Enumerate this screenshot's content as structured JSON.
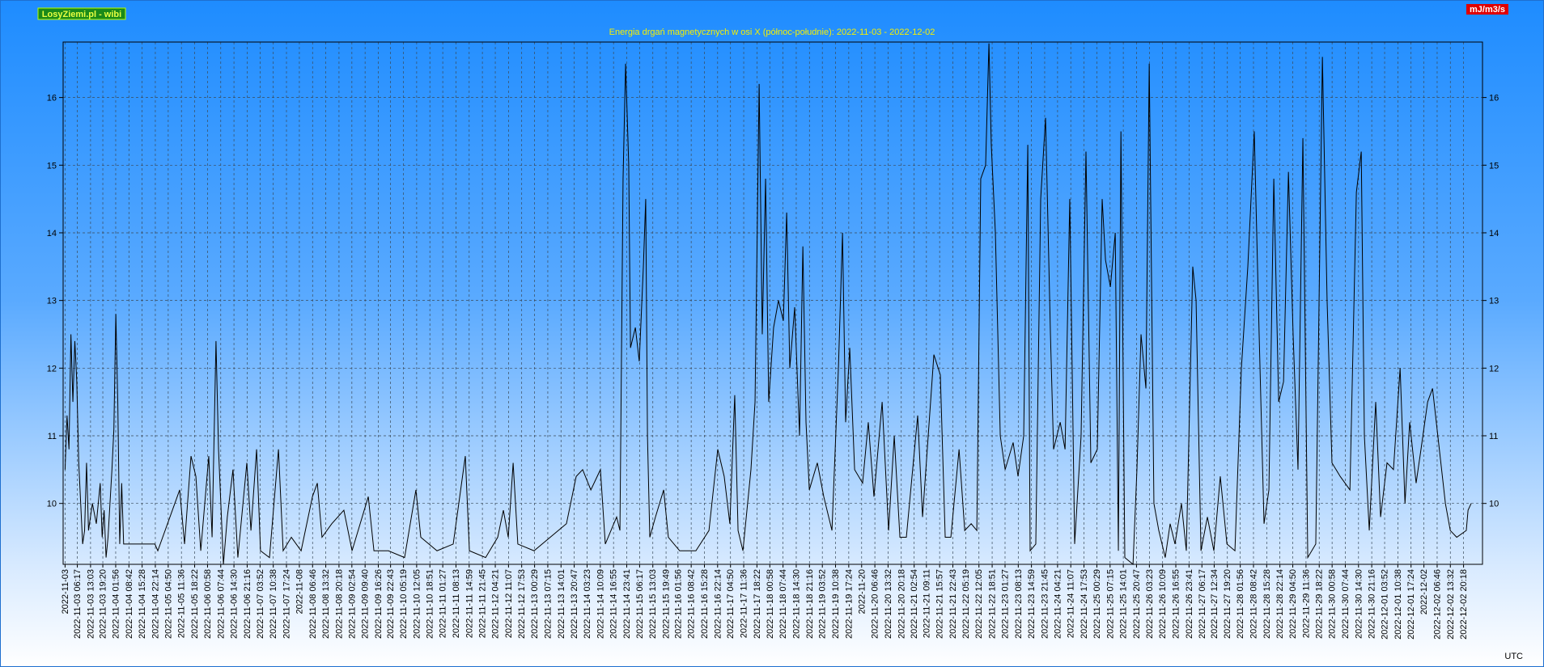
{
  "chart_data": {
    "type": "line",
    "source_label": "LosyZiemi.pl - wibi",
    "title": "Energia drgań magnetycznych w osi X (północ-południe): 2022-11-03 - 2022-12-02",
    "unit_label": "mJ/m3/s",
    "timezone_label": "UTC",
    "color": "#000000",
    "grid": true,
    "xlim": [
      -1,
      726
    ],
    "ylim": [
      9.1,
      16.82
    ],
    "yticks": [
      10,
      11,
      12,
      13,
      14,
      15,
      16
    ],
    "xticks": [
      {
        "value": 0,
        "label": "2022-11-03"
      },
      {
        "value": 6.28,
        "label": "2022-11-03 06:17"
      },
      {
        "value": 13.05,
        "label": "2022-11-03 13:03"
      },
      {
        "value": 19.33,
        "label": "2022-11-03 19:20"
      },
      {
        "value": 25.93,
        "label": "2022-11-04 01:56"
      },
      {
        "value": 32.7,
        "label": "2022-11-04 08:42"
      },
      {
        "value": 39.47,
        "label": "2022-11-04 15:28"
      },
      {
        "value": 46.23,
        "label": "2022-11-04 22:14"
      },
      {
        "value": 52.83,
        "label": "2022-11-05 04:50"
      },
      {
        "value": 59.6,
        "label": "2022-11-05 11:36"
      },
      {
        "value": 66.37,
        "label": "2022-11-05 18:22"
      },
      {
        "value": 72.97,
        "label": "2022-11-06 00:58"
      },
      {
        "value": 79.73,
        "label": "2022-11-06 07:44"
      },
      {
        "value": 86.5,
        "label": "2022-11-06 14:30"
      },
      {
        "value": 93.27,
        "label": "2022-11-06 21:16"
      },
      {
        "value": 99.87,
        "label": "2022-11-07 03:52"
      },
      {
        "value": 106.63,
        "label": "2022-11-07 10:38"
      },
      {
        "value": 113.4,
        "label": "2022-11-07 17:24"
      },
      {
        "value": 120,
        "label": "2022-11-08"
      },
      {
        "value": 126.77,
        "label": "2022-11-08 06:46"
      },
      {
        "value": 133.53,
        "label": "2022-11-08 13:32"
      },
      {
        "value": 140.3,
        "label": "2022-11-08 20:18"
      },
      {
        "value": 146.9,
        "label": "2022-11-09 02:54"
      },
      {
        "value": 153.67,
        "label": "2022-11-09 09:40"
      },
      {
        "value": 160.43,
        "label": "2022-11-09 16:26"
      },
      {
        "value": 166.72,
        "label": "2022-11-09 22:43"
      },
      {
        "value": 173.32,
        "label": "2022-11-10 05:19"
      },
      {
        "value": 180.08,
        "label": "2022-11-10 12:05"
      },
      {
        "value": 186.85,
        "label": "2022-11-10 18:51"
      },
      {
        "value": 193.45,
        "label": "2022-11-11 01:27"
      },
      {
        "value": 200.22,
        "label": "2022-11-11 08:13"
      },
      {
        "value": 206.98,
        "label": "2022-11-11 14:59"
      },
      {
        "value": 213.75,
        "label": "2022-11-11 21:45"
      },
      {
        "value": 220.35,
        "label": "2022-11-12 04:21"
      },
      {
        "value": 227.12,
        "label": "2022-11-12 11:07"
      },
      {
        "value": 233.88,
        "label": "2022-11-12 17:53"
      },
      {
        "value": 240.48,
        "label": "2022-11-13 00:29"
      },
      {
        "value": 247.25,
        "label": "2022-11-13 07:15"
      },
      {
        "value": 254.02,
        "label": "2022-11-13 14:01"
      },
      {
        "value": 260.78,
        "label": "2022-11-13 20:47"
      },
      {
        "value": 267.38,
        "label": "2022-11-14 03:23"
      },
      {
        "value": 274.15,
        "label": "2022-11-14 10:09"
      },
      {
        "value": 280.92,
        "label": "2022-11-14 16:55"
      },
      {
        "value": 287.68,
        "label": "2022-11-14 23:41"
      },
      {
        "value": 294.28,
        "label": "2022-11-15 06:17"
      },
      {
        "value": 301.05,
        "label": "2022-11-15 13:03"
      },
      {
        "value": 307.82,
        "label": "2022-11-15 19:49"
      },
      {
        "value": 313.93,
        "label": "2022-11-16 01:56"
      },
      {
        "value": 320.7,
        "label": "2022-11-16 08:42"
      },
      {
        "value": 327.47,
        "label": "2022-11-16 15:28"
      },
      {
        "value": 334.23,
        "label": "2022-11-16 22:14"
      },
      {
        "value": 340.83,
        "label": "2022-11-17 04:50"
      },
      {
        "value": 347.6,
        "label": "2022-11-17 11:36"
      },
      {
        "value": 354.37,
        "label": "2022-11-17 18:22"
      },
      {
        "value": 360.97,
        "label": "2022-11-18 00:58"
      },
      {
        "value": 367.73,
        "label": "2022-11-18 07:44"
      },
      {
        "value": 374.5,
        "label": "2022-11-18 14:30"
      },
      {
        "value": 381.27,
        "label": "2022-11-18 21:16"
      },
      {
        "value": 387.87,
        "label": "2022-11-19 03:52"
      },
      {
        "value": 394.63,
        "label": "2022-11-19 10:38"
      },
      {
        "value": 401.4,
        "label": "2022-11-19 17:24"
      },
      {
        "value": 408,
        "label": "2022-11-20"
      },
      {
        "value": 414.77,
        "label": "2022-11-20 06:46"
      },
      {
        "value": 421.53,
        "label": "2022-11-20 13:32"
      },
      {
        "value": 428.3,
        "label": "2022-11-20 20:18"
      },
      {
        "value": 434.9,
        "label": "2022-11-21 02:54"
      },
      {
        "value": 441.18,
        "label": "2022-11-21 09:11"
      },
      {
        "value": 447.95,
        "label": "2022-11-21 15:57"
      },
      {
        "value": 454.72,
        "label": "2022-11-21 22:43"
      },
      {
        "value": 461.32,
        "label": "2022-11-22 05:19"
      },
      {
        "value": 468.08,
        "label": "2022-11-22 12:05"
      },
      {
        "value": 474.85,
        "label": "2022-11-22 18:51"
      },
      {
        "value": 481.45,
        "label": "2022-11-23 01:27"
      },
      {
        "value": 488.22,
        "label": "2022-11-23 08:13"
      },
      {
        "value": 494.98,
        "label": "2022-11-23 14:59"
      },
      {
        "value": 501.75,
        "label": "2022-11-23 21:45"
      },
      {
        "value": 508.35,
        "label": "2022-11-24 04:21"
      },
      {
        "value": 515.12,
        "label": "2022-11-24 11:07"
      },
      {
        "value": 521.88,
        "label": "2022-11-24 17:53"
      },
      {
        "value": 528.48,
        "label": "2022-11-25 00:29"
      },
      {
        "value": 535.25,
        "label": "2022-11-25 07:15"
      },
      {
        "value": 542.02,
        "label": "2022-11-25 14:01"
      },
      {
        "value": 548.78,
        "label": "2022-11-25 20:47"
      },
      {
        "value": 555.38,
        "label": "2022-11-26 03:23"
      },
      {
        "value": 562.15,
        "label": "2022-11-26 10:09"
      },
      {
        "value": 568.92,
        "label": "2022-11-26 16:55"
      },
      {
        "value": 575.68,
        "label": "2022-11-26 23:41"
      },
      {
        "value": 582.28,
        "label": "2022-11-27 06:17"
      },
      {
        "value": 588.57,
        "label": "2022-11-27 12:34"
      },
      {
        "value": 595.33,
        "label": "2022-11-27 19:20"
      },
      {
        "value": 601.93,
        "label": "2022-11-28 01:56"
      },
      {
        "value": 608.7,
        "label": "2022-11-28 08:42"
      },
      {
        "value": 615.47,
        "label": "2022-11-28 15:28"
      },
      {
        "value": 622.23,
        "label": "2022-11-28 22:14"
      },
      {
        "value": 628.83,
        "label": "2022-11-29 04:50"
      },
      {
        "value": 635.6,
        "label": "2022-11-29 11:36"
      },
      {
        "value": 642.37,
        "label": "2022-11-29 18:22"
      },
      {
        "value": 648.97,
        "label": "2022-11-30 00:58"
      },
      {
        "value": 655.73,
        "label": "2022-11-30 07:44"
      },
      {
        "value": 662.5,
        "label": "2022-11-30 14:30"
      },
      {
        "value": 669.27,
        "label": "2022-11-30 21:16"
      },
      {
        "value": 675.87,
        "label": "2022-12-01 03:52"
      },
      {
        "value": 682.63,
        "label": "2022-12-01 10:38"
      },
      {
        "value": 689.4,
        "label": "2022-12-01 17:24"
      },
      {
        "value": 696,
        "label": "2022-12-02"
      },
      {
        "value": 702.77,
        "label": "2022-12-02 06:46"
      },
      {
        "value": 709.53,
        "label": "2022-12-02 13:32"
      },
      {
        "value": 716.3,
        "label": "2022-12-02 20:18"
      }
    ],
    "x": [
      0,
      1,
      2,
      3,
      4,
      5,
      6,
      7,
      9,
      10,
      11,
      12,
      14,
      16,
      18,
      19,
      20,
      21,
      22,
      24,
      25,
      26,
      27,
      28,
      29,
      30,
      38,
      46,
      47.5,
      58.7,
      61.2,
      64.5,
      67.0,
      69.5,
      73.6,
      75.3,
      77.3,
      78.6,
      81.1,
      83.1,
      86.0,
      88.5,
      93.1,
      95.2,
      98.1,
      100.1,
      104.7,
      109.3,
      111.7,
      115.9,
      120.9,
      126.7,
      129.2,
      131.6,
      136.6,
      142.8,
      147.0,
      155.3,
      158.2,
      165.6,
      173.9,
      179.7,
      182.2,
      190.5,
      198.8,
      205.0,
      207.1,
      215.4,
      221.6,
      224.5,
      227.0,
      229.5,
      231.9,
      240.2,
      248.5,
      256.8,
      261.8,
      265.1,
      269.3,
      274.2,
      276.7,
      282.5,
      284.2,
      285.8,
      287.1,
      288.7,
      289.6,
      292.1,
      294.1,
      296.2,
      297.4,
      298.3,
      299.5,
      302.4,
      306.6,
      309.0,
      314.8,
      323.1,
      329.8,
      334.3,
      337.6,
      340.5,
      343.0,
      344.7,
      347.2,
      351.3,
      353.4,
      355.5,
      357.1,
      358.8,
      360.4,
      362.9,
      365.4,
      367.9,
      369.6,
      371.2,
      373.7,
      376.2,
      377.9,
      379.5,
      381.2,
      385.3,
      388.6,
      392.8,
      396.1,
      398.2,
      399.8,
      401.9,
      404.4,
      408.5,
      411.4,
      414.3,
      418.5,
      421.8,
      424.7,
      427.6,
      430.9,
      436.7,
      439.2,
      445.0,
      448.3,
      450.8,
      453.7,
      457.9,
      460.8,
      464.1,
      467.0,
      469.0,
      471.5,
      473.2,
      474.4,
      476.5,
      479.0,
      481.5,
      485.6,
      488.1,
      491.0,
      493.1,
      494.3,
      497.2,
      499.7,
      502.2,
      504.7,
      506.3,
      509.7,
      512.2,
      514.6,
      517.1,
      520.4,
      522.9,
      525.4,
      528.7,
      531.2,
      532.9,
      535.4,
      537.9,
      539.5,
      540.8,
      542.8,
      547.0,
      549.0,
      551.1,
      553.6,
      555.3,
      557.7,
      560.2,
      563.5,
      566.0,
      568.5,
      571.8,
      574.3,
      577.6,
      579.3,
      581.8,
      585.1,
      588.4,
      591.7,
      595.1,
      599.2,
      602.5,
      605.8,
      609.1,
      611.6,
      614.1,
      616.6,
      619.1,
      621.6,
      624.1,
      626.6,
      629.0,
      631.5,
      634.0,
      636.5,
      640.6,
      644.0,
      646.4,
      648.9,
      653.1,
      658.1,
      661.4,
      663.9,
      665.5,
      668.0,
      671.3,
      673.8,
      677.1,
      680.4,
      683.8,
      686.3,
      688.7,
      692.0,
      694.5,
      697.9,
      700.4,
      707.0,
      709.5,
      712.8,
      717.7,
      718.6,
      720.2
    ],
    "values": [
      10.5,
      11.3,
      10.8,
      12.5,
      11.5,
      12.4,
      11.8,
      10.6,
      9.4,
      9.6,
      10.6,
      9.6,
      10.0,
      9.7,
      10.3,
      9.5,
      9.9,
      9.2,
      9.5,
      10.5,
      11.1,
      12.8,
      11.5,
      9.4,
      10.3,
      9.4,
      9.4,
      9.4,
      9.3,
      10.2,
      9.4,
      10.7,
      10.4,
      9.3,
      10.7,
      9.5,
      12.4,
      10.8,
      9.1,
      9.8,
      10.5,
      9.2,
      10.6,
      9.6,
      10.8,
      9.3,
      9.2,
      10.8,
      9.3,
      9.5,
      9.3,
      10.1,
      10.3,
      9.5,
      9.7,
      9.9,
      9.3,
      10.1,
      9.3,
      9.3,
      9.2,
      10.2,
      9.5,
      9.3,
      9.4,
      10.7,
      9.3,
      9.2,
      9.5,
      9.9,
      9.5,
      10.6,
      9.4,
      9.3,
      9.5,
      9.7,
      10.4,
      10.5,
      10.2,
      10.5,
      9.4,
      9.8,
      9.6,
      14.8,
      16.5,
      15.0,
      12.3,
      12.6,
      12.1,
      13.5,
      14.5,
      11.0,
      9.5,
      9.8,
      10.2,
      9.5,
      9.3,
      9.3,
      9.6,
      10.8,
      10.4,
      9.7,
      11.6,
      9.6,
      9.3,
      10.5,
      11.5,
      16.2,
      12.5,
      14.8,
      11.5,
      12.6,
      13.0,
      12.7,
      14.3,
      12.0,
      12.9,
      11.0,
      13.8,
      11.2,
      10.2,
      10.6,
      10.1,
      9.6,
      12.0,
      14.0,
      11.2,
      12.3,
      10.5,
      10.3,
      11.2,
      10.1,
      11.5,
      9.6,
      11.0,
      9.5,
      9.5,
      11.3,
      9.8,
      12.2,
      11.9,
      9.5,
      9.5,
      10.8,
      9.6,
      9.7,
      9.6,
      14.8,
      15.0,
      16.8,
      15.3,
      14.0,
      11.0,
      10.5,
      10.9,
      10.4,
      11.0,
      15.3,
      9.3,
      9.4,
      14.5,
      15.7,
      12.5,
      10.8,
      11.2,
      10.8,
      14.5,
      9.4,
      11.0,
      15.2,
      10.6,
      10.8,
      14.5,
      13.6,
      13.2,
      14.0,
      9.3,
      15.5,
      9.2,
      9.1,
      10.5,
      12.5,
      11.7,
      16.5,
      10.0,
      9.6,
      9.2,
      9.7,
      9.4,
      10.0,
      9.3,
      13.5,
      13.0,
      9.3,
      9.8,
      9.3,
      10.4,
      9.4,
      9.3,
      12.0,
      13.5,
      15.5,
      12.5,
      9.7,
      10.2,
      14.8,
      11.5,
      11.8,
      14.9,
      12.5,
      10.5,
      15.4,
      9.2,
      9.4,
      16.6,
      13.0,
      10.6,
      10.4,
      10.2,
      14.6,
      15.2,
      11.0,
      9.6,
      11.5,
      9.8,
      10.6,
      10.5,
      12.0,
      10.0,
      11.2,
      10.3,
      10.8,
      11.5,
      11.7,
      10.0,
      9.6,
      9.5,
      9.6,
      9.9,
      10.0
    ]
  }
}
